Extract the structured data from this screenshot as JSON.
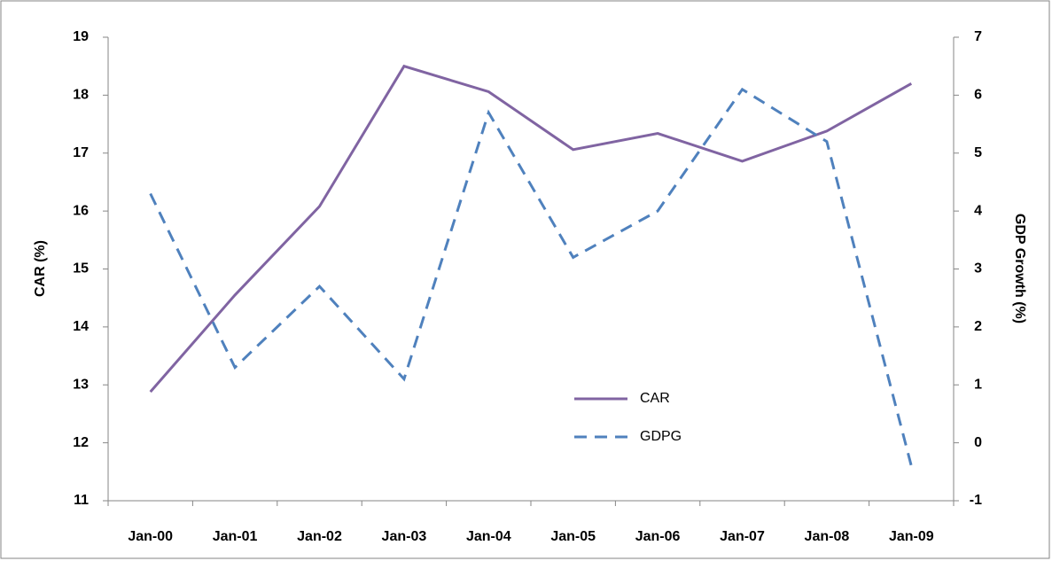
{
  "chart_data": {
    "type": "line",
    "categories": [
      "Jan-00",
      "Jan-01",
      "Jan-02",
      "Jan-03",
      "Jan-04",
      "Jan-05",
      "Jan-06",
      "Jan-07",
      "Jan-08",
      "Jan-09"
    ],
    "series": [
      {
        "name": "CAR",
        "color": "#8064a2",
        "dash": false,
        "values": [
          12.88,
          14.55,
          16.08,
          18.5,
          18.06,
          17.06,
          17.34,
          16.86,
          17.38,
          18.2
        ]
      },
      {
        "name": "GDPG",
        "color": "#4f81bd",
        "dash": true,
        "axis": "y2",
        "values": [
          4.3,
          1.3,
          2.7,
          1.1,
          5.7,
          3.2,
          4.0,
          6.1,
          5.2,
          -0.4
        ]
      }
    ],
    "ylabel": "CAR (%)",
    "y2label": "GDP  Growth (%)",
    "ylim": [
      11,
      19
    ],
    "yticks": [
      11,
      12,
      13,
      14,
      15,
      16,
      17,
      18,
      19
    ],
    "y2lim": [
      -1,
      7
    ],
    "y2ticks": [
      -1,
      0,
      1,
      2,
      3,
      4,
      5,
      6,
      7
    ],
    "grid": false
  }
}
